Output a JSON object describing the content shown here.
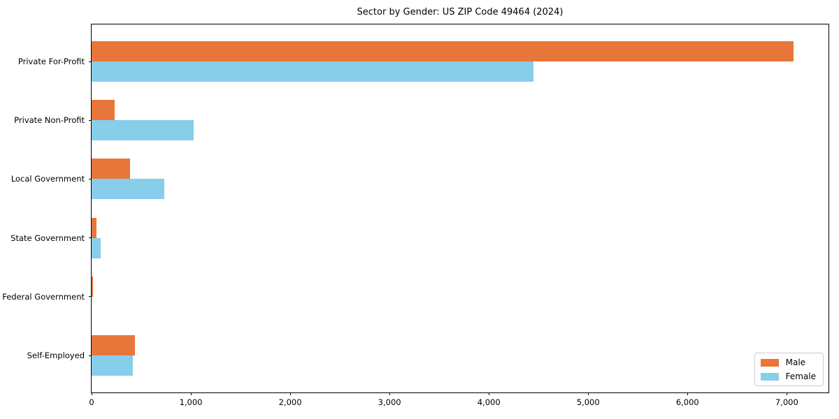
{
  "title": "Sector by Gender: US ZIP Code 49464 (2024)",
  "colors": {
    "male": "#e8763b",
    "female": "#87ceeb",
    "frame": "#000000",
    "legend_border": "#cccccc",
    "background": "#ffffff"
  },
  "chart_data": {
    "type": "bar",
    "orientation": "horizontal",
    "title": "Sector by Gender: US ZIP Code 49464 (2024)",
    "xlabel": "",
    "ylabel": "",
    "categories": [
      "Private For-Profit",
      "Private Non-Profit",
      "Local Government",
      "State Government",
      "Federal Government",
      "Self-Employed"
    ],
    "series": [
      {
        "name": "Male",
        "color": "#e8763b",
        "values": [
          7070,
          230,
          385,
          50,
          12,
          435
        ]
      },
      {
        "name": "Female",
        "color": "#87ceeb",
        "values": [
          4450,
          1025,
          730,
          90,
          0,
          415
        ]
      }
    ],
    "xlim": [
      0,
      7420
    ],
    "x_ticks": [
      0,
      1000,
      2000,
      3000,
      4000,
      5000,
      6000,
      7000
    ],
    "x_tick_labels": [
      "0",
      "1,000",
      "2,000",
      "3,000",
      "4,000",
      "5,000",
      "6,000",
      "7,000"
    ],
    "grid": false,
    "legend_position": "lower right",
    "legend_labels": [
      "Male",
      "Female"
    ]
  }
}
